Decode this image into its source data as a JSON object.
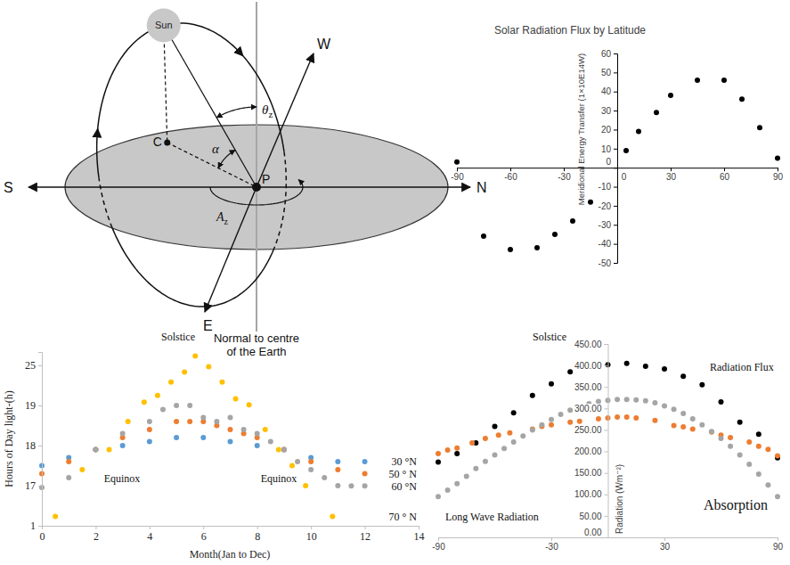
{
  "diagram": {
    "labels": {
      "sun": "Sun",
      "west": "W",
      "north": "N",
      "south": "S",
      "east": "E",
      "observer": "P",
      "centre": "C",
      "altitude": "α",
      "zenith_angle": [
        "θ",
        "z"
      ],
      "azimuth": [
        "A",
        "z"
      ],
      "normal": "Normal to centre of the Earth"
    }
  },
  "chart_data": [
    {
      "type": "scatter",
      "title": "Solar Radiation Flux by Latitude",
      "ylabel": "Meridional Energy Transfer (1×10E14W)",
      "x": [
        -90,
        -75,
        -60,
        -45,
        -35,
        -25,
        -15,
        5,
        12,
        22,
        30,
        45,
        60,
        70,
        80,
        90
      ],
      "series": [
        {
          "color": "#000000",
          "values": [
            3,
            -36,
            -43,
            -42,
            -35,
            -28,
            -18,
            9,
            19,
            29,
            38,
            46,
            46,
            36,
            21,
            5
          ]
        }
      ],
      "xlim": [
        -90,
        90
      ],
      "xticks": [
        -90,
        -60,
        -30,
        0,
        30,
        60,
        90
      ],
      "ylim": [
        -50,
        60
      ],
      "yticks": [
        -50,
        -40,
        -30,
        -20,
        -10,
        0,
        10,
        20,
        30,
        40,
        50,
        60
      ],
      "marker": "circle"
    },
    {
      "type": "scatter",
      "xlabel": "Month(Jan to Dec)",
      "ylabel": "Hours of Day light-(h)",
      "annotations": [
        "Solstice",
        "Equinox",
        "Equinox",
        "Solstice"
      ],
      "legend": "right",
      "xlim": [
        0,
        14
      ],
      "xticks": [
        0,
        2,
        4,
        6,
        8,
        10,
        12,
        14
      ],
      "ylim": [
        1,
        27
      ],
      "yticks": [
        1,
        17,
        18,
        19,
        25
      ],
      "marker": "circle",
      "series": [
        {
          "name": "30 °N",
          "color": "#5b9bd5",
          "x": [
            0,
            1,
            2,
            3,
            4,
            5,
            6,
            7,
            8,
            9,
            10,
            11,
            12
          ],
          "values": [
            17.5,
            17.7,
            17.9,
            18.0,
            18.1,
            18.2,
            18.2,
            18.1,
            18.0,
            17.9,
            17.7,
            17.6,
            17.6
          ]
        },
        {
          "name": "50 ° N",
          "color": "#ed7d31",
          "x": [
            0,
            1,
            2,
            3,
            4,
            5,
            5.5,
            6,
            6.5,
            7,
            7.5,
            8,
            9,
            10,
            11,
            12
          ],
          "values": [
            17.3,
            17.6,
            17.9,
            18.2,
            18.4,
            18.6,
            18.6,
            18.6,
            18.5,
            18.4,
            18.3,
            18.2,
            17.9,
            17.6,
            17.4,
            17.3
          ]
        },
        {
          "name": "60 °N",
          "color": "#a5a5a5",
          "x": [
            0,
            1,
            2,
            3,
            4,
            4.5,
            5,
            5.5,
            6,
            6.5,
            7,
            7.5,
            8,
            8.5,
            9,
            9.5,
            10,
            10.5,
            11,
            11.5,
            12
          ],
          "values": [
            16.3,
            17.2,
            17.9,
            18.3,
            18.6,
            18.9,
            19.0,
            19.0,
            18.7,
            18.6,
            18.7,
            18.4,
            18.3,
            18.1,
            17.9,
            17.6,
            17.4,
            17.2,
            17.0,
            16.9,
            16.9
          ]
        },
        {
          "name": "70 ° N",
          "color": "#ffc000",
          "x": [
            0.5,
            1.5,
            2.5,
            3.2,
            3.8,
            4.3,
            4.8,
            5.3,
            5.7,
            6.2,
            6.7,
            7.2,
            7.7,
            8.3,
            8.8,
            9.3,
            9.8,
            10.8
          ],
          "values": [
            4.7,
            17.4,
            17.9,
            18.6,
            19.5,
            20.5,
            22.5,
            24.0,
            26.4,
            24.8,
            22.5,
            20.0,
            19.1,
            18.4,
            17.9,
            17.5,
            17.0,
            4.7
          ]
        }
      ]
    },
    {
      "type": "scatter",
      "ylabel": "Radiation (Wm⁻²)",
      "xlim": [
        -90,
        90
      ],
      "xticks": [
        -90,
        -30,
        30,
        90
      ],
      "ylim": [
        0,
        450
      ],
      "yticks": [
        {
          "value": 0,
          "label": "0.00"
        },
        {
          "value": 50,
          "label": "50.00"
        },
        {
          "value": 100,
          "label": "100.00"
        },
        {
          "value": 150,
          "label": "150.00"
        },
        {
          "value": 200,
          "label": "200.00"
        },
        {
          "value": 250,
          "label": "250.00"
        },
        {
          "value": 300,
          "label": "300.00"
        },
        {
          "value": 350,
          "label": "350.00"
        },
        {
          "value": 400,
          "label": "400.00"
        },
        {
          "value": 450,
          "label": "450.00"
        }
      ],
      "marker": "circle",
      "series": [
        {
          "name": "Radiation Flux",
          "color": "#000000",
          "x": [
            -90,
            -80,
            -70,
            -60,
            -50,
            -40,
            -30,
            -20,
            -10,
            0,
            10,
            20,
            30,
            40,
            50,
            60,
            70,
            80,
            90
          ],
          "values": [
            175,
            195,
            220,
            258,
            290,
            330,
            357,
            385,
            398,
            402,
            405,
            398,
            392,
            375,
            355,
            315,
            268,
            240,
            185
          ]
        },
        {
          "name": "Long Wave Radiation",
          "color": "#ed7d31",
          "x": [
            -90,
            -85,
            -80,
            -72,
            -65,
            -58,
            -52,
            -40,
            -35,
            -30,
            -20,
            -15,
            -5,
            0,
            5,
            10,
            15,
            25,
            35,
            40,
            45,
            55,
            60,
            65,
            75,
            80,
            85,
            90
          ],
          "values": [
            195,
            203,
            208,
            220,
            230,
            238,
            243,
            252,
            258,
            262,
            268,
            270,
            276,
            278,
            280,
            280,
            278,
            272,
            260,
            257,
            252,
            245,
            238,
            232,
            222,
            212,
            205,
            190
          ]
        },
        {
          "name": "Absorption",
          "color": "#a5a5a5",
          "x": [
            -90,
            -85,
            -80,
            -75,
            -70,
            -65,
            -60,
            -55,
            -50,
            -45,
            -40,
            -35,
            -30,
            -25,
            -20,
            -15,
            -10,
            -5,
            0,
            5,
            10,
            15,
            20,
            25,
            30,
            35,
            40,
            45,
            50,
            55,
            60,
            65,
            70,
            75,
            80,
            85,
            90
          ],
          "values": [
            95,
            110,
            125,
            142,
            160,
            177,
            192,
            207,
            222,
            236,
            250,
            262,
            274,
            286,
            296,
            304,
            311,
            316,
            319,
            321,
            321,
            320,
            318,
            313,
            306,
            298,
            288,
            276,
            262,
            246,
            230,
            212,
            192,
            170,
            147,
            122,
            95
          ]
        }
      ]
    }
  ]
}
